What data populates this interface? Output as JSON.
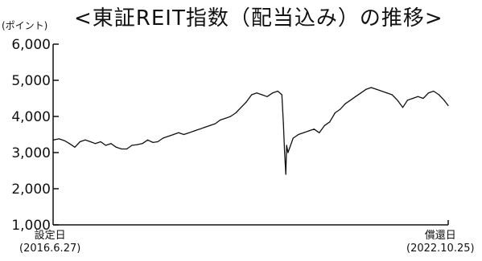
{
  "chart_data": {
    "type": "line",
    "title": "<東証REIT指数（配当込み）の推移>",
    "y_unit_label": "(ポイント)",
    "ylim": [
      1000,
      6000
    ],
    "yticks": [
      1000,
      2000,
      3000,
      4000,
      5000,
      6000
    ],
    "ytick_labels": [
      "1,000",
      "2,000",
      "3,000",
      "4,000",
      "5,000",
      "6,000"
    ],
    "x_start_label": "設定日",
    "x_start_date": "(2016.6.27)",
    "x_end_label": "償還日",
    "x_end_date": "(2022.10.25)",
    "xlim": [
      "2016-06-27",
      "2022-10-25"
    ],
    "line_color": "#111111",
    "series": [
      {
        "points": [
          [
            "2016-06-27",
            3350
          ],
          [
            "2016-08-01",
            3380
          ],
          [
            "2016-09-01",
            3330
          ],
          [
            "2016-10-01",
            3250
          ],
          [
            "2016-11-01",
            3150
          ],
          [
            "2016-12-01",
            3300
          ],
          [
            "2017-01-01",
            3350
          ],
          [
            "2017-02-01",
            3300
          ],
          [
            "2017-03-01",
            3250
          ],
          [
            "2017-04-01",
            3300
          ],
          [
            "2017-05-01",
            3200
          ],
          [
            "2017-06-01",
            3250
          ],
          [
            "2017-07-01",
            3150
          ],
          [
            "2017-08-01",
            3100
          ],
          [
            "2017-09-01",
            3100
          ],
          [
            "2017-10-01",
            3200
          ],
          [
            "2017-11-01",
            3220
          ],
          [
            "2017-12-01",
            3250
          ],
          [
            "2018-01-01",
            3350
          ],
          [
            "2018-02-01",
            3280
          ],
          [
            "2018-03-01",
            3300
          ],
          [
            "2018-04-01",
            3400
          ],
          [
            "2018-05-01",
            3450
          ],
          [
            "2018-06-01",
            3500
          ],
          [
            "2018-07-01",
            3550
          ],
          [
            "2018-08-01",
            3500
          ],
          [
            "2018-09-01",
            3550
          ],
          [
            "2018-10-01",
            3600
          ],
          [
            "2018-11-01",
            3650
          ],
          [
            "2018-12-01",
            3700
          ],
          [
            "2019-01-01",
            3750
          ],
          [
            "2019-02-01",
            3800
          ],
          [
            "2019-03-01",
            3900
          ],
          [
            "2019-04-01",
            3950
          ],
          [
            "2019-05-01",
            4000
          ],
          [
            "2019-06-01",
            4100
          ],
          [
            "2019-07-01",
            4250
          ],
          [
            "2019-08-01",
            4400
          ],
          [
            "2019-09-01",
            4600
          ],
          [
            "2019-10-01",
            4650
          ],
          [
            "2019-11-01",
            4600
          ],
          [
            "2019-12-01",
            4550
          ],
          [
            "2020-01-01",
            4650
          ],
          [
            "2020-02-01",
            4700
          ],
          [
            "2020-02-25",
            4600
          ],
          [
            "2020-03-05",
            3800
          ],
          [
            "2020-03-12",
            3000
          ],
          [
            "2020-03-19",
            2400
          ],
          [
            "2020-03-24",
            3200
          ],
          [
            "2020-04-01",
            3000
          ],
          [
            "2020-05-01",
            3400
          ],
          [
            "2020-06-01",
            3500
          ],
          [
            "2020-07-01",
            3550
          ],
          [
            "2020-08-01",
            3600
          ],
          [
            "2020-09-01",
            3650
          ],
          [
            "2020-10-01",
            3550
          ],
          [
            "2020-11-01",
            3750
          ],
          [
            "2020-12-01",
            3850
          ],
          [
            "2021-01-01",
            4100
          ],
          [
            "2021-02-01",
            4200
          ],
          [
            "2021-03-01",
            4350
          ],
          [
            "2021-04-01",
            4450
          ],
          [
            "2021-05-01",
            4550
          ],
          [
            "2021-06-01",
            4650
          ],
          [
            "2021-07-01",
            4750
          ],
          [
            "2021-08-01",
            4800
          ],
          [
            "2021-09-01",
            4750
          ],
          [
            "2021-10-01",
            4700
          ],
          [
            "2021-11-01",
            4650
          ],
          [
            "2021-12-01",
            4600
          ],
          [
            "2022-01-01",
            4450
          ],
          [
            "2022-02-01",
            4250
          ],
          [
            "2022-03-01",
            4450
          ],
          [
            "2022-04-01",
            4500
          ],
          [
            "2022-05-01",
            4550
          ],
          [
            "2022-06-01",
            4500
          ],
          [
            "2022-07-01",
            4650
          ],
          [
            "2022-08-01",
            4700
          ],
          [
            "2022-09-01",
            4600
          ],
          [
            "2022-10-01",
            4450
          ],
          [
            "2022-10-25",
            4300
          ]
        ]
      }
    ]
  }
}
